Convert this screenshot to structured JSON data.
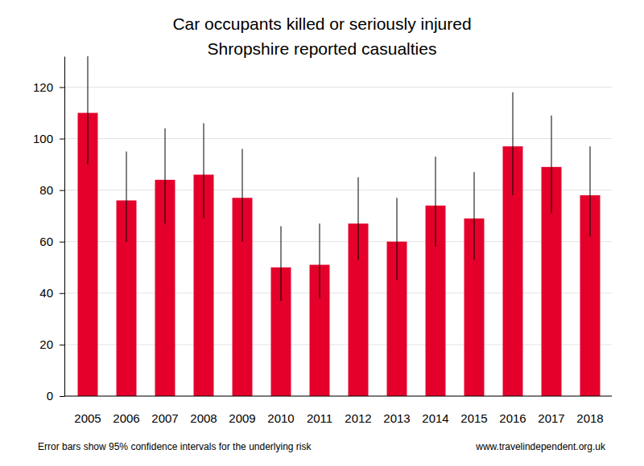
{
  "chart_data": {
    "type": "bar",
    "title": "Car occupants killed or seriously injured",
    "subtitle": "Shropshire reported casualties",
    "categories": [
      "2005",
      "2006",
      "2007",
      "2008",
      "2009",
      "2010",
      "2011",
      "2012",
      "2013",
      "2014",
      "2015",
      "2016",
      "2017",
      "2018"
    ],
    "values": [
      110,
      76,
      84,
      86,
      77,
      50,
      51,
      67,
      60,
      74,
      69,
      97,
      89,
      78
    ],
    "error_low": [
      90,
      60,
      67,
      69,
      60,
      37,
      38,
      53,
      45,
      58,
      53,
      78,
      71,
      62
    ],
    "error_high": [
      132,
      95,
      104,
      106,
      96,
      66,
      67,
      85,
      77,
      93,
      87,
      118,
      109,
      97
    ],
    "color": "#e4002b",
    "ylim": [
      0,
      132
    ],
    "yticks": [
      0,
      20,
      40,
      60,
      80,
      100,
      120
    ],
    "grid": true,
    "annotations": [
      "Error bars show 95% confidence intervals for the underlying risk",
      "www.travelindependent.org.uk"
    ]
  }
}
